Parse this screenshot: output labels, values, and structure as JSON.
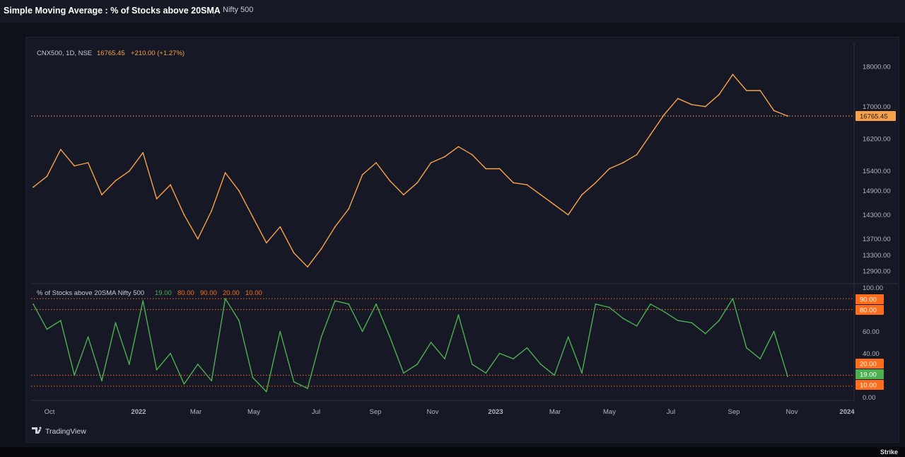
{
  "header": {
    "title": "Simple Moving Average : % of Stocks above 20SMA",
    "symbol_tab": "Nifty 500"
  },
  "footer": {
    "brand": "TradingView",
    "credit": "Strike"
  },
  "colors": {
    "price_line": "#f7a14a",
    "indicator_line": "#4caf50",
    "level_marker": "#ff6d1a",
    "background": "#161925"
  },
  "chart_data": [
    {
      "type": "line",
      "legend": {
        "symbol": "CNX500, 1D, NSE",
        "last_value": "16765.45",
        "change": "+210.00 (+1.27%)"
      },
      "y_tick_labels": [
        "18000.00",
        "17000.00",
        "16200.00",
        "15400.00",
        "14900.00",
        "14300.00",
        "13700.00",
        "13300.00",
        "12900.00"
      ],
      "ylim": [
        12600,
        18600
      ],
      "last_price_label": "16765.45",
      "x_tick_labels": [
        "Oct",
        "2022",
        "Mar",
        "May",
        "Jul",
        "Sep",
        "Nov",
        "2023",
        "Mar",
        "May",
        "Jul",
        "Sep",
        "Nov",
        "2024"
      ],
      "series": [
        {
          "x": [
            "2021-09-20",
            "2021-10-04",
            "2021-10-18",
            "2021-11-01",
            "2021-11-15",
            "2021-11-29",
            "2021-12-13",
            "2021-12-27",
            "2022-01-10",
            "2022-01-24",
            "2022-02-07",
            "2022-02-21",
            "2022-03-07",
            "2022-03-21",
            "2022-04-04",
            "2022-04-18",
            "2022-05-02",
            "2022-05-16",
            "2022-05-30",
            "2022-06-13",
            "2022-06-27",
            "2022-07-11",
            "2022-07-25",
            "2022-08-08",
            "2022-08-22",
            "2022-09-05",
            "2022-09-19",
            "2022-10-03",
            "2022-10-17",
            "2022-10-31",
            "2022-11-14",
            "2022-11-28",
            "2022-12-12",
            "2022-12-26",
            "2023-01-09",
            "2023-01-23",
            "2023-02-06",
            "2023-02-20",
            "2023-03-06",
            "2023-03-20",
            "2023-04-03",
            "2023-04-17",
            "2023-05-01",
            "2023-05-15",
            "2023-05-29",
            "2023-06-12",
            "2023-06-26",
            "2023-07-10",
            "2023-07-24",
            "2023-08-07",
            "2023-08-21",
            "2023-09-04",
            "2023-09-18",
            "2023-10-02",
            "2023-10-16",
            "2023-10-30"
          ],
          "values": [
            14990,
            15260,
            15930,
            15520,
            15600,
            14800,
            15150,
            15390,
            15850,
            14700,
            15050,
            14300,
            13700,
            14400,
            15350,
            14900,
            14250,
            13600,
            14000,
            13350,
            13000,
            13450,
            14000,
            14450,
            15300,
            15600,
            15150,
            14800,
            15100,
            15600,
            15750,
            16000,
            15800,
            15450,
            15450,
            15100,
            15050,
            14800,
            14550,
            14300,
            14800,
            15100,
            15450,
            15600,
            15800,
            16300,
            16800,
            17200,
            17050,
            17000,
            17300,
            17800,
            17400,
            17400,
            16900,
            16765.45
          ]
        }
      ]
    },
    {
      "type": "line",
      "legend": {
        "title": "% of Stocks above 20SMA Nifty 500",
        "values": [
          "19.00",
          "80.00",
          "90.00",
          "20.00",
          "10.00"
        ]
      },
      "y_tick_labels": [
        "100.00",
        "60.00",
        "40.00",
        "0.00"
      ],
      "ylim": [
        -3,
        103
      ],
      "levels": [
        {
          "label": "90.00",
          "value": 90
        },
        {
          "label": "80.00",
          "value": 80
        },
        {
          "label": "20.00",
          "value": 20
        },
        {
          "label": "19.00",
          "value": 19
        },
        {
          "label": "10.00",
          "value": 10
        }
      ],
      "series": [
        {
          "x": [
            "2021-09-20",
            "2021-10-04",
            "2021-10-18",
            "2021-11-01",
            "2021-11-15",
            "2021-11-29",
            "2021-12-13",
            "2021-12-27",
            "2022-01-10",
            "2022-01-24",
            "2022-02-07",
            "2022-02-21",
            "2022-03-07",
            "2022-03-21",
            "2022-04-04",
            "2022-04-18",
            "2022-05-02",
            "2022-05-16",
            "2022-05-30",
            "2022-06-13",
            "2022-06-27",
            "2022-07-11",
            "2022-07-25",
            "2022-08-08",
            "2022-08-22",
            "2022-09-05",
            "2022-09-19",
            "2022-10-03",
            "2022-10-17",
            "2022-10-31",
            "2022-11-14",
            "2022-11-28",
            "2022-12-12",
            "2022-12-26",
            "2023-01-09",
            "2023-01-23",
            "2023-02-06",
            "2023-02-20",
            "2023-03-06",
            "2023-03-20",
            "2023-04-03",
            "2023-04-17",
            "2023-05-01",
            "2023-05-15",
            "2023-05-29",
            "2023-06-12",
            "2023-06-26",
            "2023-07-10",
            "2023-07-24",
            "2023-08-07",
            "2023-08-21",
            "2023-09-04",
            "2023-09-18",
            "2023-10-02",
            "2023-10-16",
            "2023-10-30"
          ],
          "values": [
            85,
            62,
            70,
            20,
            55,
            15,
            68,
            30,
            88,
            25,
            40,
            12,
            30,
            15,
            90,
            70,
            18,
            5,
            60,
            14,
            8,
            55,
            88,
            85,
            60,
            85,
            55,
            22,
            30,
            50,
            35,
            75,
            30,
            22,
            40,
            35,
            45,
            30,
            20,
            55,
            22,
            85,
            82,
            72,
            65,
            85,
            78,
            70,
            68,
            58,
            70,
            90,
            45,
            35,
            60,
            19
          ]
        }
      ]
    }
  ]
}
